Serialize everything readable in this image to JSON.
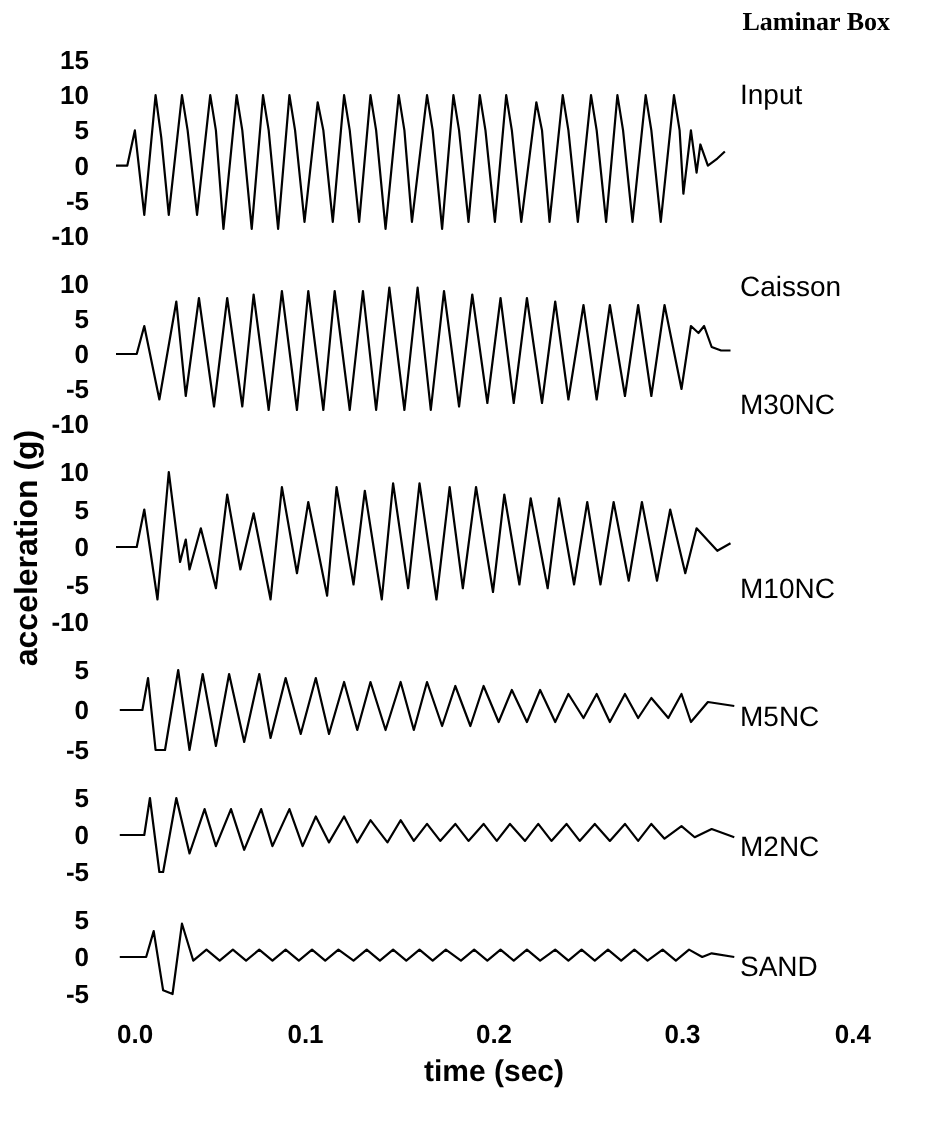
{
  "chart_data": [
    {
      "type": "line",
      "title": "Laminar Box",
      "xlim": [
        0,
        0.4
      ],
      "ylim": [
        -10,
        15
      ],
      "yticks": [
        15,
        10,
        5,
        0,
        -5,
        -10
      ],
      "tick_labels": "y",
      "series": [
        {
          "name": "Input",
          "color": "#000000",
          "x": [
            0,
            0.006,
            0.01,
            0.015,
            0.021,
            0.024,
            0.028,
            0.035,
            0.038,
            0.043,
            0.05,
            0.053,
            0.057,
            0.064,
            0.067,
            0.072,
            0.078,
            0.081,
            0.086,
            0.092,
            0.095,
            0.1,
            0.107,
            0.11,
            0.115,
            0.121,
            0.124,
            0.129,
            0.135,
            0.138,
            0.143,
            0.15,
            0.153,
            0.157,
            0.165,
            0.168,
            0.173,
            0.179,
            0.182,
            0.187,
            0.193,
            0.196,
            0.201,
            0.207,
            0.21,
            0.215,
            0.223,
            0.226,
            0.23,
            0.237,
            0.24,
            0.245,
            0.252,
            0.255,
            0.26,
            0.266,
            0.269,
            0.274,
            0.281,
            0.284,
            0.289,
            0.296,
            0.299,
            0.301,
            0.305,
            0.308,
            0.31,
            0.314,
            0.319,
            0.323
          ],
          "values": [
            0,
            0,
            5,
            -7,
            10,
            4,
            -7,
            10,
            5,
            -7,
            10,
            5,
            -9,
            10,
            5,
            -9,
            10,
            5,
            -9,
            10,
            5,
            -8,
            9,
            5,
            -8,
            10,
            5,
            -8,
            10,
            5,
            -9,
            10,
            5,
            -8,
            10,
            5,
            -9,
            10,
            5,
            -8,
            10,
            5,
            -8,
            10,
            5,
            -8,
            9,
            5,
            -8,
            10,
            5,
            -8,
            10,
            5,
            -8,
            10,
            5,
            -8,
            10,
            5,
            -8,
            10,
            5,
            -4,
            5,
            -1,
            3,
            0,
            1,
            2
          ]
        }
      ]
    },
    {
      "type": "line",
      "xlim": [
        0,
        0.4
      ],
      "ylim": [
        -10,
        10
      ],
      "yticks": [
        10,
        5,
        0,
        -5,
        -10
      ],
      "tick_labels": "y",
      "annotations": [
        "Caisson"
      ],
      "series": [
        {
          "name": "M30NC",
          "color": "#000000",
          "x": [
            0,
            0.011,
            0.015,
            0.023,
            0.032,
            0.037,
            0.044,
            0.052,
            0.059,
            0.067,
            0.073,
            0.081,
            0.088,
            0.096,
            0.102,
            0.11,
            0.116,
            0.124,
            0.131,
            0.138,
            0.145,
            0.153,
            0.16,
            0.167,
            0.174,
            0.182,
            0.189,
            0.197,
            0.204,
            0.211,
            0.218,
            0.226,
            0.233,
            0.24,
            0.248,
            0.255,
            0.262,
            0.27,
            0.277,
            0.284,
            0.291,
            0.3,
            0.305,
            0.309,
            0.312,
            0.316,
            0.321,
            0.326
          ],
          "values": [
            0,
            0,
            4,
            -6.5,
            7.5,
            -6,
            8,
            -7.5,
            8,
            -7.5,
            8.5,
            -8,
            9,
            -8,
            9,
            -8,
            9,
            -8,
            9,
            -8,
            9.5,
            -8,
            9.5,
            -8,
            9,
            -7.5,
            8.5,
            -7,
            8,
            -7,
            8,
            -7,
            7.5,
            -6.5,
            7,
            -6.5,
            7,
            -6,
            7,
            -6,
            7,
            -5,
            4,
            3,
            4,
            1,
            0.5,
            0.5
          ]
        }
      ]
    },
    {
      "type": "line",
      "ylabel": "acceleration (g)",
      "xlim": [
        0,
        0.4
      ],
      "ylim": [
        -10,
        10
      ],
      "yticks": [
        10,
        5,
        0,
        -5,
        -10
      ],
      "tick_labels": "y",
      "series": [
        {
          "name": "M10NC",
          "color": "#000000",
          "x": [
            0,
            0.011,
            0.015,
            0.022,
            0.028,
            0.034,
            0.037,
            0.039,
            0.045,
            0.053,
            0.059,
            0.066,
            0.073,
            0.082,
            0.088,
            0.096,
            0.102,
            0.112,
            0.117,
            0.126,
            0.132,
            0.141,
            0.147,
            0.155,
            0.161,
            0.17,
            0.177,
            0.184,
            0.191,
            0.2,
            0.206,
            0.214,
            0.22,
            0.229,
            0.235,
            0.243,
            0.25,
            0.257,
            0.264,
            0.272,
            0.279,
            0.287,
            0.294,
            0.302,
            0.308,
            0.319,
            0.326
          ],
          "values": [
            0,
            0,
            5,
            -7,
            10,
            -2,
            1,
            -3,
            2.5,
            -5.5,
            7,
            -3,
            4.5,
            -7,
            8,
            -3.5,
            6,
            -6.5,
            8,
            -5,
            7.5,
            -7,
            8.5,
            -5.5,
            8.5,
            -7,
            8,
            -5.5,
            8,
            -6,
            7,
            -5,
            6.5,
            -5.5,
            6.5,
            -5,
            6,
            -5,
            6,
            -4.5,
            6,
            -4.5,
            5,
            -3.5,
            2.5,
            -0.5,
            0.5
          ]
        }
      ]
    },
    {
      "type": "line",
      "xlim": [
        0,
        0.4
      ],
      "ylim": [
        -5,
        5
      ],
      "yticks": [
        5,
        0,
        -5
      ],
      "tick_labels": "y",
      "series": [
        {
          "name": "M5NC",
          "color": "#000000",
          "x": [
            0.002,
            0.014,
            0.017,
            0.021,
            0.026,
            0.033,
            0.039,
            0.046,
            0.053,
            0.06,
            0.068,
            0.076,
            0.082,
            0.09,
            0.098,
            0.106,
            0.113,
            0.121,
            0.128,
            0.135,
            0.143,
            0.151,
            0.158,
            0.165,
            0.173,
            0.18,
            0.188,
            0.195,
            0.203,
            0.21,
            0.218,
            0.225,
            0.233,
            0.24,
            0.248,
            0.255,
            0.262,
            0.27,
            0.277,
            0.284,
            0.293,
            0.3,
            0.305,
            0.314,
            0.328
          ],
          "values": [
            0,
            0,
            4,
            -5,
            -5,
            5,
            -5,
            4.5,
            -4.5,
            4.5,
            -4,
            4.5,
            -3.5,
            4,
            -3,
            4,
            -3,
            3.5,
            -2.5,
            3.5,
            -2.5,
            3.5,
            -2.5,
            3.5,
            -2,
            3,
            -2,
            3,
            -1.5,
            2.5,
            -1.5,
            2.5,
            -1.5,
            2,
            -1,
            2,
            -1.5,
            2,
            -1,
            1.5,
            -1,
            2,
            -1.5,
            1,
            0.5
          ]
        }
      ]
    },
    {
      "type": "line",
      "xlim": [
        0,
        0.4
      ],
      "ylim": [
        -5,
        5
      ],
      "yticks": [
        5,
        0,
        -5
      ],
      "tick_labels": "y",
      "series": [
        {
          "name": "M2NC",
          "color": "#000000",
          "x": [
            0.002,
            0.015,
            0.018,
            0.023,
            0.025,
            0.032,
            0.039,
            0.047,
            0.053,
            0.061,
            0.068,
            0.077,
            0.083,
            0.092,
            0.099,
            0.106,
            0.113,
            0.121,
            0.128,
            0.135,
            0.144,
            0.151,
            0.158,
            0.165,
            0.172,
            0.18,
            0.187,
            0.195,
            0.202,
            0.209,
            0.217,
            0.224,
            0.231,
            0.239,
            0.246,
            0.254,
            0.262,
            0.27,
            0.277,
            0.284,
            0.291,
            0.3,
            0.307,
            0.316,
            0.328
          ],
          "values": [
            0,
            0,
            5,
            -5,
            -5,
            5,
            -2.5,
            3.5,
            -1.5,
            3.5,
            -2,
            3.5,
            -1.5,
            3.5,
            -1.5,
            2.5,
            -1,
            2.5,
            -1,
            2,
            -1,
            2,
            -0.8,
            1.5,
            -0.8,
            1.5,
            -0.8,
            1.5,
            -0.8,
            1.5,
            -0.8,
            1.5,
            -0.8,
            1.5,
            -0.8,
            1.5,
            -0.8,
            1.5,
            -0.8,
            1.5,
            -0.5,
            1.2,
            -0.3,
            0.8,
            -0.3
          ]
        }
      ]
    },
    {
      "type": "line",
      "xlabel": "time (sec)",
      "xlim": [
        0,
        0.4
      ],
      "xticks": [
        {
          "value": 0,
          "label": "0.0"
        },
        0.1,
        0.2,
        0.3,
        0.4
      ],
      "ylim": [
        -5,
        5
      ],
      "yticks": [
        5,
        0,
        -5
      ],
      "series": [
        {
          "name": "SAND",
          "color": "#000000",
          "x": [
            0.002,
            0.016,
            0.02,
            0.025,
            0.03,
            0.035,
            0.041,
            0.048,
            0.055,
            0.062,
            0.069,
            0.076,
            0.083,
            0.09,
            0.097,
            0.104,
            0.111,
            0.118,
            0.126,
            0.133,
            0.14,
            0.147,
            0.154,
            0.161,
            0.168,
            0.175,
            0.183,
            0.19,
            0.197,
            0.204,
            0.211,
            0.218,
            0.225,
            0.233,
            0.24,
            0.247,
            0.254,
            0.261,
            0.268,
            0.275,
            0.282,
            0.29,
            0.297,
            0.304,
            0.311,
            0.316,
            0.328
          ],
          "values": [
            0,
            0,
            3.5,
            -4.5,
            -5,
            4.5,
            -0.5,
            1,
            -0.5,
            1,
            -0.5,
            1,
            -0.5,
            1,
            -0.5,
            1,
            -0.5,
            1,
            -0.5,
            1,
            -0.5,
            1,
            -0.5,
            1,
            -0.5,
            1,
            -0.5,
            1,
            -0.5,
            1,
            -0.5,
            1,
            -0.5,
            1,
            -0.5,
            1,
            -0.5,
            1,
            -0.5,
            1,
            -0.5,
            1,
            -0.5,
            1,
            0,
            0.5,
            0
          ]
        }
      ]
    }
  ]
}
